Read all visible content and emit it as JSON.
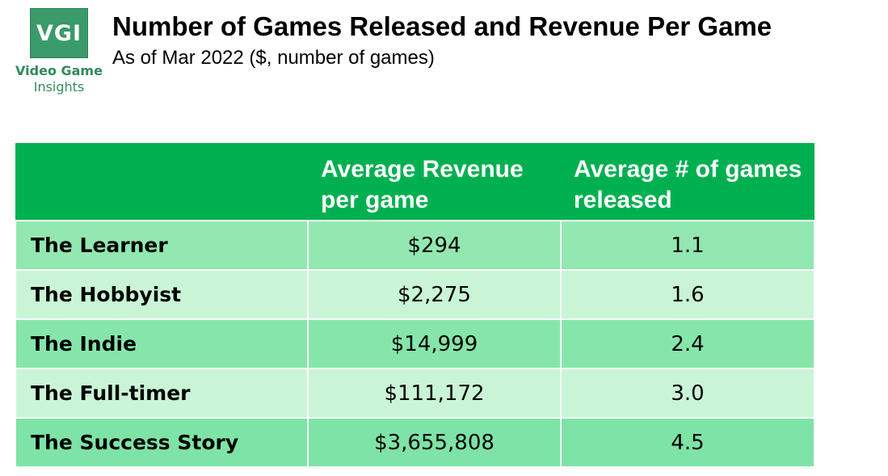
{
  "logo": {
    "mark": "VGI",
    "name": "Video Game",
    "sub": "Insights"
  },
  "title": "Number of Games Released and Revenue Per Game",
  "subtitle": "As of Mar 2022 ($, number of games)",
  "colors": {
    "header_bg": "#00b050",
    "row_dark": "#92e8b0",
    "row_light": "#c9f5d6",
    "row_mid": "#86e6aa",
    "row_last": "#7ee3a6",
    "logo_green": "#3a9a6a"
  },
  "chart_data": {
    "type": "table",
    "title": "Number of Games Released and Revenue Per Game",
    "subtitle": "As of Mar 2022 ($, number of games)",
    "columns": [
      "",
      "Average Revenue per game",
      "Average # of games released"
    ],
    "rows": [
      {
        "label": "The Learner",
        "revenue": "$294",
        "games": "1.1"
      },
      {
        "label": "The Hobbyist",
        "revenue": "$2,275",
        "games": "1.6"
      },
      {
        "label": "The Indie",
        "revenue": "$14,999",
        "games": "2.4"
      },
      {
        "label": "The Full-timer",
        "revenue": "$111,172",
        "games": "3.0"
      },
      {
        "label": "The Success Story",
        "revenue": "$3,655,808",
        "games": "4.5"
      }
    ]
  }
}
